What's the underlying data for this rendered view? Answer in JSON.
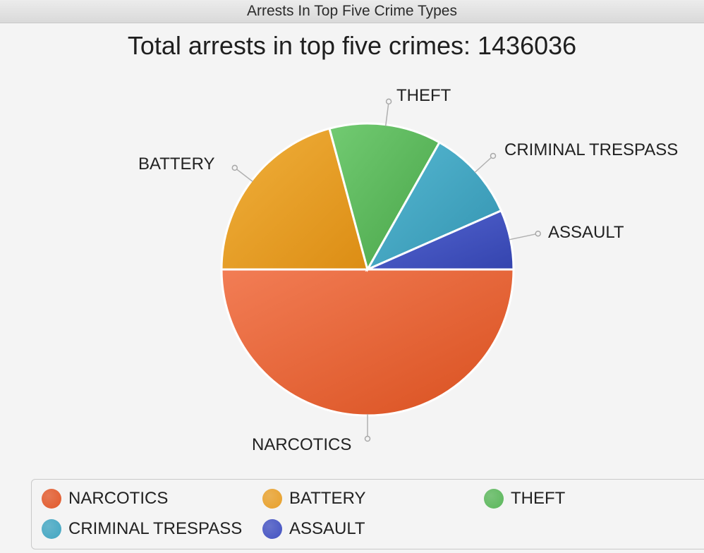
{
  "window": {
    "title": "Arrests In Top Five Crime Types"
  },
  "chart_data": {
    "type": "pie",
    "title": "Total arrests in top five crimes: 1436036",
    "categories": [
      "NARCOTICS",
      "BATTERY",
      "THEFT",
      "CRIMINAL TRESPASS",
      "ASSAULT"
    ],
    "values": [
      718018,
      298695,
      178068,
      146476,
      94779
    ],
    "colors": [
      "#e2592b",
      "#e8a02a",
      "#5bb75b",
      "#42a6c2",
      "#4352c2"
    ],
    "legend_position": "bottom"
  },
  "legend": {
    "items": [
      {
        "label": "NARCOTICS",
        "color": "#e2592b"
      },
      {
        "label": "BATTERY",
        "color": "#e8a02a"
      },
      {
        "label": "THEFT",
        "color": "#5bb75b"
      },
      {
        "label": "CRIMINAL TRESPASS",
        "color": "#42a6c2"
      },
      {
        "label": "ASSAULT",
        "color": "#4352c2"
      }
    ]
  }
}
